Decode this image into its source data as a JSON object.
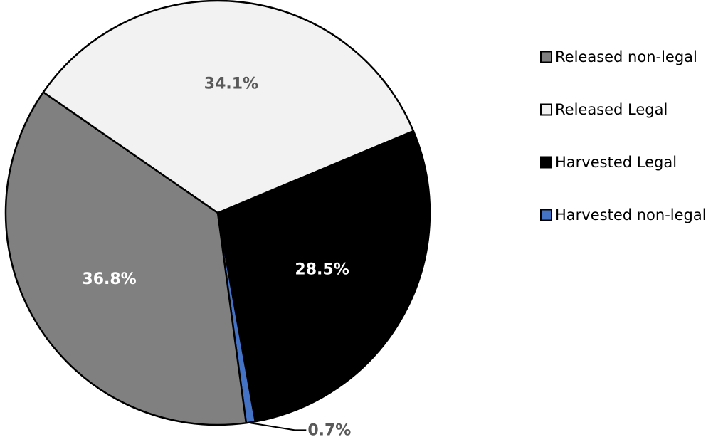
{
  "chart_data": {
    "type": "pie",
    "title": "",
    "legend_position": "right",
    "slices": [
      {
        "name": "Released non-legal",
        "value": 36.8,
        "label": "36.8%",
        "color": "#808080",
        "label_color": "#ffffff"
      },
      {
        "name": "Released Legal",
        "value": 34.1,
        "label": "34.1%",
        "color": "#f2f2f2",
        "label_color": "#595959"
      },
      {
        "name": "Harvested Legal",
        "value": 28.5,
        "label": "28.5%",
        "color": "#000000",
        "label_color": "#ffffff"
      },
      {
        "name": "Harvested non-legal",
        "value": 0.7,
        "label": "0.7%",
        "color": "#4472c4",
        "label_color": "#595959"
      }
    ]
  }
}
